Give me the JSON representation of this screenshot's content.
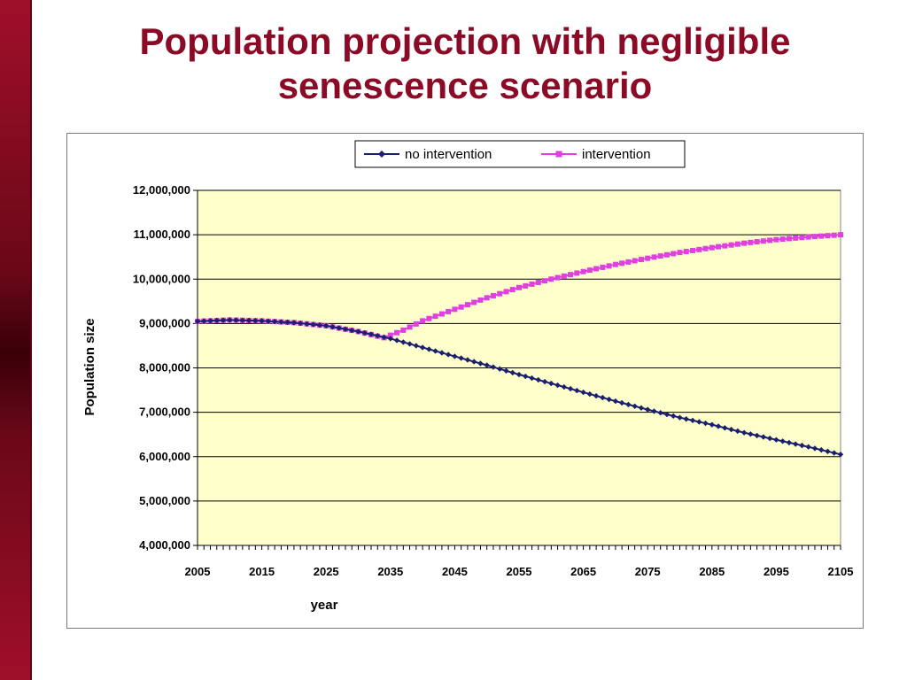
{
  "slide": {
    "title_line1": "Population projection with negligible",
    "title_line2": "senescence scenario"
  },
  "colors": {
    "title": "#8b0a25",
    "plot_background": "#ffffcc",
    "no_intervention": "#1a1f6e",
    "intervention": "#e040e0"
  },
  "chart_data": {
    "type": "line",
    "title": "",
    "xlabel": "year",
    "ylabel": "Population size",
    "xlim": [
      2005,
      2105
    ],
    "ylim": [
      4000000,
      12000000
    ],
    "grid": true,
    "legend_position": "top",
    "x_ticks": [
      "2005",
      "2015",
      "2025",
      "2035",
      "2045",
      "2055",
      "2065",
      "2075",
      "2085",
      "2095",
      "2105"
    ],
    "y_ticks": [
      "4,000,000",
      "5,000,000",
      "6,000,000",
      "7,000,000",
      "8,000,000",
      "9,000,000",
      "10,000,000",
      "11,000,000",
      "12,000,000"
    ],
    "series": [
      {
        "name": "no intervention",
        "points": [
          [
            2005,
            9050000
          ],
          [
            2010,
            9080000
          ],
          [
            2015,
            9060000
          ],
          [
            2020,
            9020000
          ],
          [
            2025,
            8950000
          ],
          [
            2030,
            8820000
          ],
          [
            2035,
            8660000
          ],
          [
            2040,
            8460000
          ],
          [
            2045,
            8260000
          ],
          [
            2050,
            8060000
          ],
          [
            2055,
            7850000
          ],
          [
            2060,
            7650000
          ],
          [
            2065,
            7450000
          ],
          [
            2070,
            7250000
          ],
          [
            2075,
            7060000
          ],
          [
            2080,
            6880000
          ],
          [
            2085,
            6720000
          ],
          [
            2090,
            6540000
          ],
          [
            2095,
            6380000
          ],
          [
            2100,
            6220000
          ],
          [
            2105,
            6050000
          ]
        ]
      },
      {
        "name": "intervention",
        "points": [
          [
            2005,
            9050000
          ],
          [
            2010,
            9080000
          ],
          [
            2015,
            9060000
          ],
          [
            2020,
            9020000
          ],
          [
            2025,
            8950000
          ],
          [
            2030,
            8820000
          ],
          [
            2034,
            8680000
          ],
          [
            2037,
            8850000
          ],
          [
            2040,
            9060000
          ],
          [
            2045,
            9320000
          ],
          [
            2050,
            9580000
          ],
          [
            2055,
            9810000
          ],
          [
            2060,
            10000000
          ],
          [
            2065,
            10170000
          ],
          [
            2070,
            10330000
          ],
          [
            2075,
            10470000
          ],
          [
            2080,
            10600000
          ],
          [
            2085,
            10710000
          ],
          [
            2090,
            10810000
          ],
          [
            2095,
            10890000
          ],
          [
            2100,
            10950000
          ],
          [
            2105,
            11000000
          ]
        ]
      }
    ]
  }
}
